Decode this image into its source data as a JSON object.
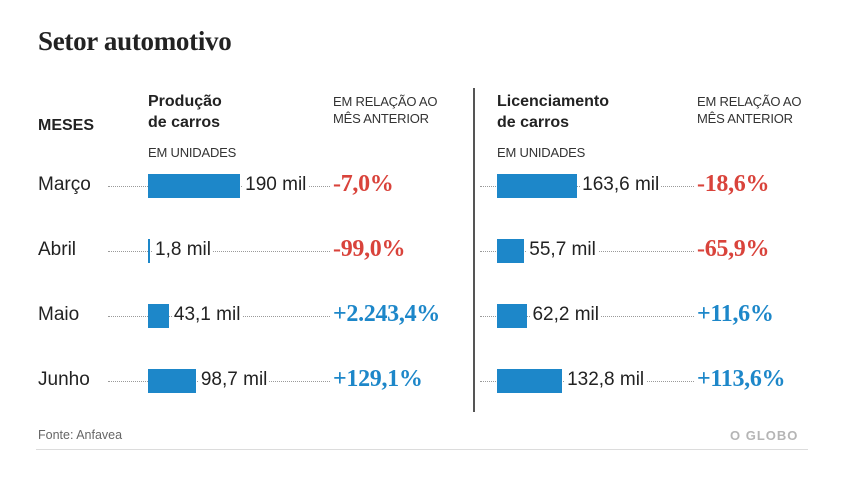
{
  "title": "Setor automotivo",
  "headers": {
    "months": "MESES",
    "producao_line1": "Produção",
    "producao_line2": "de carros",
    "producao_unit": "EM UNIDADES",
    "producao_rel_line1": "EM RELAÇÃO AO",
    "producao_rel_line2": "MÊS ANTERIOR",
    "licenciamento_line1": "Licenciamento",
    "licenciamento_line2": "de carros",
    "licenciamento_unit": "EM UNIDADES",
    "licenciamento_rel_line1": "EM RELAÇÃO AO",
    "licenciamento_rel_line2": "MÊS ANTERIOR"
  },
  "source": "Fonte: Anfavea",
  "logo": "O GLOBO",
  "colors": {
    "bar": "#1d87c9",
    "negative": "#d9433b",
    "positive": "#1d87c9"
  },
  "chart_data": [
    {
      "type": "bar",
      "title": "Produção de carros",
      "unit": "EM UNIDADES",
      "categories": [
        "Março",
        "Abril",
        "Maio",
        "Junho"
      ],
      "values": [
        190,
        1.8,
        43.1,
        98.7
      ],
      "value_labels": [
        "190 mil",
        "1,8 mil",
        "43,1 mil",
        "98,7 mil"
      ],
      "change_labels": [
        "-7,0%",
        "-99,0%",
        "+2.243,4%",
        "+129,1%"
      ],
      "change_values": [
        -7.0,
        -99.0,
        2243.4,
        129.1
      ]
    },
    {
      "type": "bar",
      "title": "Licenciamento de carros",
      "unit": "EM UNIDADES",
      "categories": [
        "Março",
        "Abril",
        "Maio",
        "Junho"
      ],
      "values": [
        163.6,
        55.7,
        62.2,
        132.8
      ],
      "value_labels": [
        "163,6 mil",
        "55,7 mil",
        "62,2 mil",
        "132,8 mil"
      ],
      "change_labels": [
        "-18,6%",
        "-65,9%",
        "+11,6%",
        "+113,6%"
      ],
      "change_values": [
        -18.6,
        -65.9,
        11.6,
        113.6
      ]
    }
  ]
}
